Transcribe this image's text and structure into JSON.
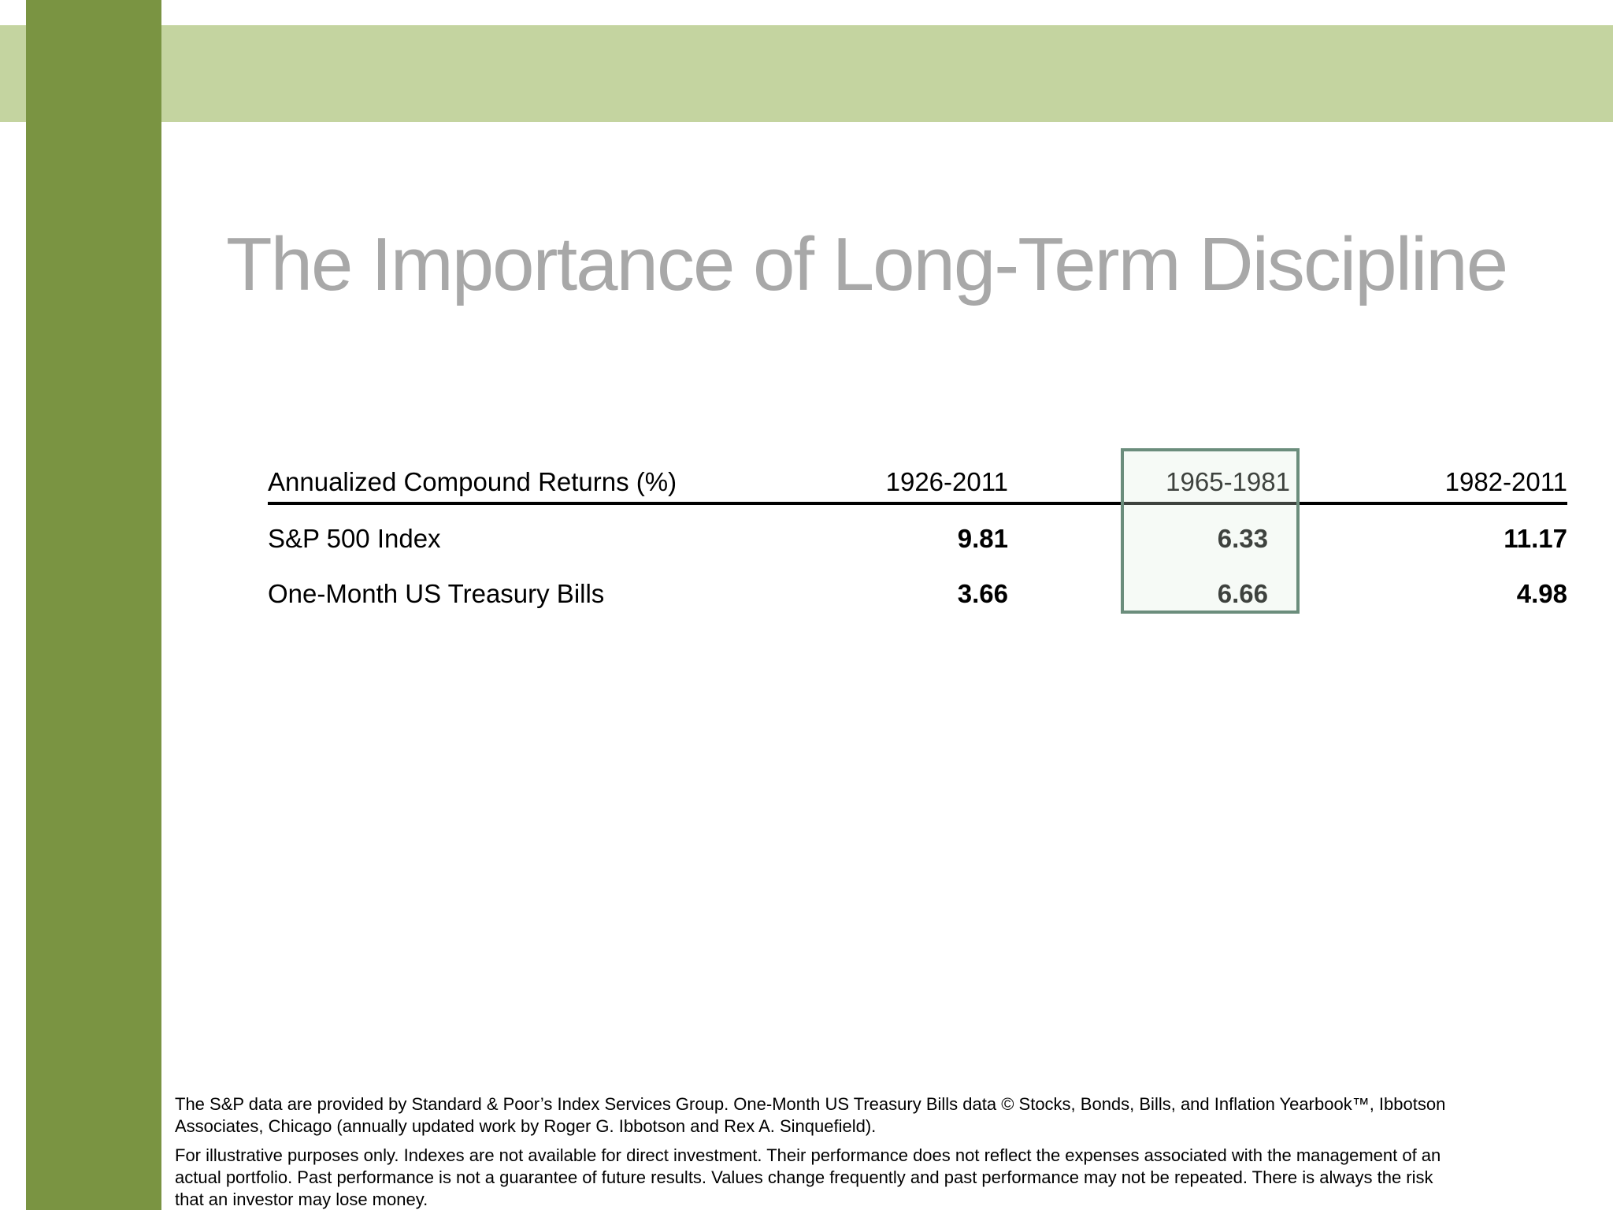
{
  "slide": {
    "title": "The Importance of Long-Term Discipline"
  },
  "table": {
    "header": {
      "label": "Annualized Compound Returns (%)",
      "period1": "1926-2011",
      "period2": "1965-1981",
      "period3": "1982-2011"
    },
    "rows": [
      {
        "label": "S&P 500 Index",
        "v1": "9.81",
        "v2": "6.33",
        "v3": "11.17"
      },
      {
        "label": "One-Month US Treasury Bills",
        "v1": "3.66",
        "v2": "6.66",
        "v3": "4.98"
      }
    ],
    "highlighted_period": "1965-1981"
  },
  "chart_data": {
    "type": "table",
    "title": "The Importance of Long-Term Discipline",
    "columns": [
      "Annualized Compound Returns (%)",
      "1926-2011",
      "1965-1981",
      "1982-2011"
    ],
    "rows": [
      [
        "S&P 500 Index",
        9.81,
        6.33,
        11.17
      ],
      [
        "One-Month US Treasury Bills",
        3.66,
        6.66,
        4.98
      ]
    ],
    "highlighted_column": "1965-1981"
  },
  "footnotes": {
    "source": "The S&P data are provided by Standard & Poor’s Index Services Group. One-Month US Treasury Bills data © Stocks, Bonds, Bills, and Inflation Yearbook™, Ibbotson Associates, Chicago (annually updated work by Roger G. Ibbotson and Rex A. Sinquefield).",
    "disclaimer": "For illustrative purposes only. Indexes are not available for direct investment. Their performance does not reflect the expenses associated with the management of an actual portfolio. Past performance is not a guarantee of future results. Values change frequently and past performance may not be repeated. There is always the risk that an investor may lose money."
  },
  "colors": {
    "left_bar_green": "#7a9442",
    "top_band_green": "#c4d4a0",
    "highlight_border_green": "#6b8d7c",
    "title_gray": "#a8a8a8",
    "text_black": "#000000"
  }
}
